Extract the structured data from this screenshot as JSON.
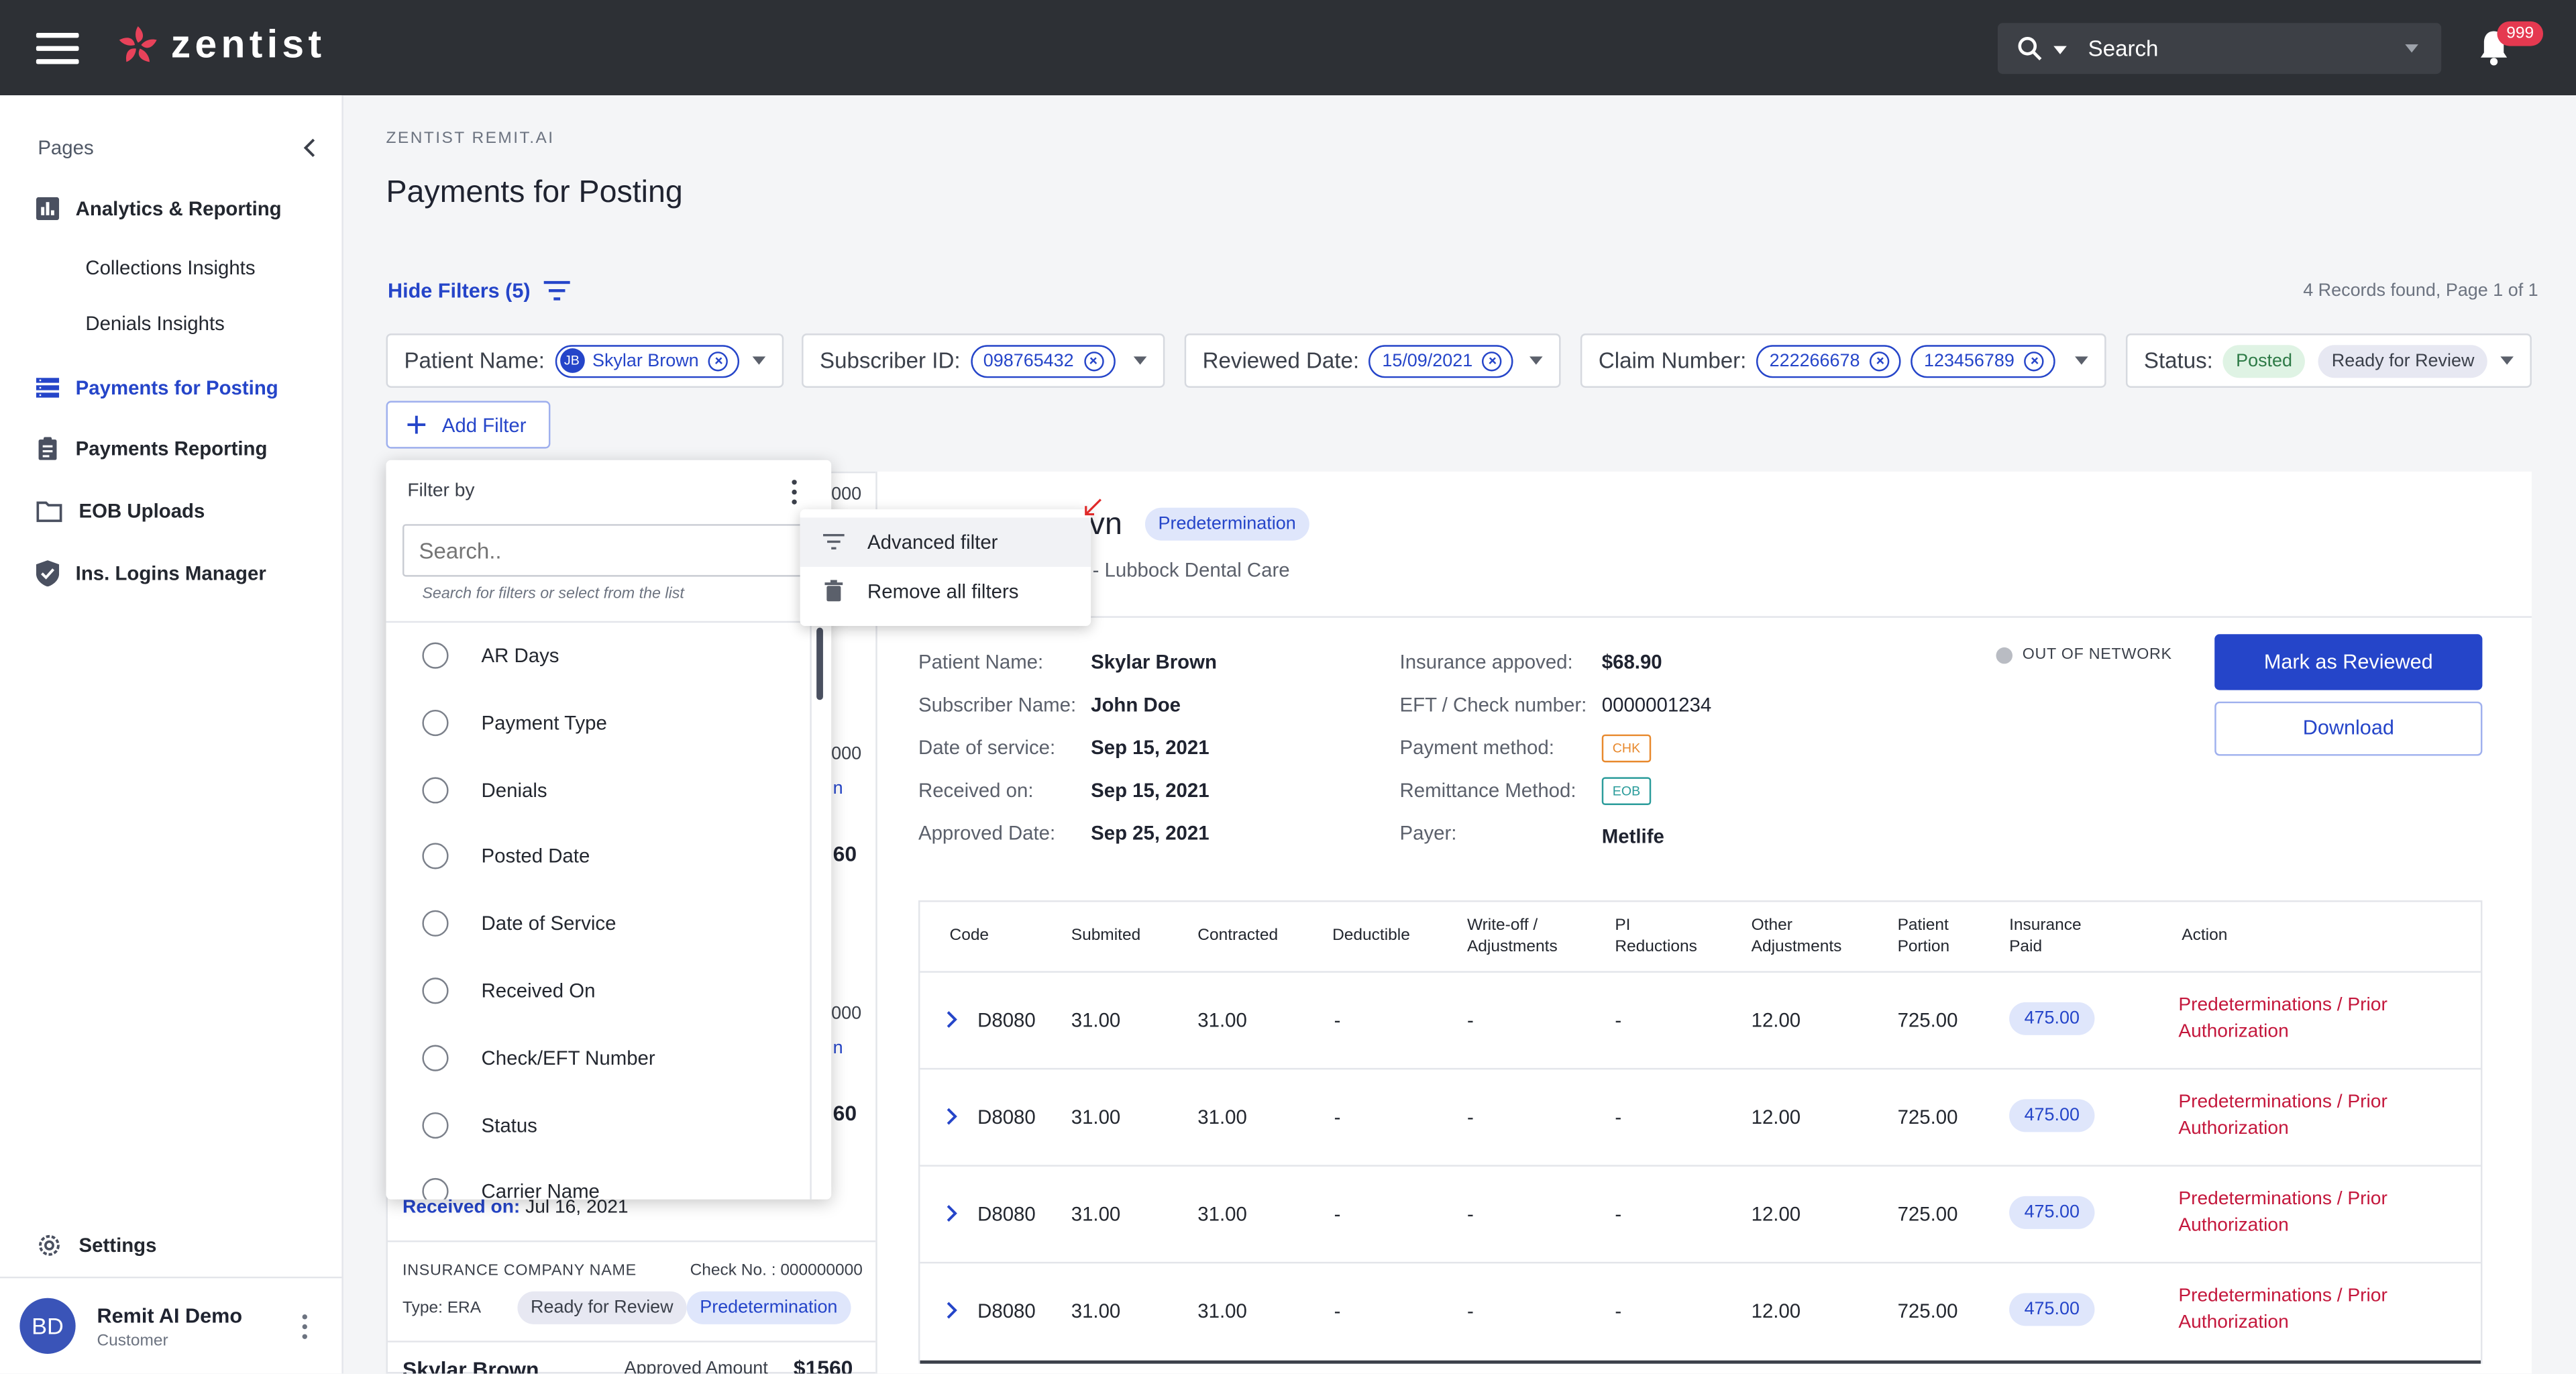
{
  "topbar": {
    "brand": "zentist",
    "search_placeholder": "Search",
    "notification_count": "999"
  },
  "sidebar": {
    "header": "Pages",
    "items": [
      {
        "label": "Analytics & Reporting",
        "icon": "bar-chart-icon"
      },
      {
        "label": "Collections Insights"
      },
      {
        "label": "Denials Insights"
      },
      {
        "label": "Payments for Posting",
        "icon": "list-icon",
        "active": true
      },
      {
        "label": "Payments Reporting",
        "icon": "clipboard-icon"
      },
      {
        "label": "EOB Uploads",
        "icon": "folder-icon"
      },
      {
        "label": "Ins. Logins Manager",
        "icon": "shield-icon"
      }
    ],
    "settings": "Settings",
    "user": {
      "initials": "BD",
      "name": "Remit AI Demo",
      "role": "Customer"
    }
  },
  "page": {
    "breadcrumb": "ZENTIST REMIT.AI",
    "title": "Payments for Posting",
    "hide_filters": "Hide Filters (5)",
    "records": "4 Records found, Page 1 of 1",
    "add_filter": "Add Filter"
  },
  "filters": {
    "patient": {
      "label": "Patient Name:",
      "chip_initials": "JB",
      "chip": "Skylar Brown"
    },
    "subscriber": {
      "label": "Subscriber ID:",
      "chip": "098765432"
    },
    "reviewed": {
      "label": "Reviewed Date:",
      "chip": "15/09/2021"
    },
    "claim": {
      "label": "Claim Number:",
      "chips": [
        "222266678",
        "123456789"
      ]
    },
    "status": {
      "label": "Status:",
      "pills": [
        "Posted",
        "Ready for Review"
      ]
    }
  },
  "dropdown": {
    "header": "Filter by",
    "search_placeholder": "Search..",
    "hint": "Search for filters or select from the list",
    "options": [
      "AR Days",
      "Payment Type",
      "Denials",
      "Posted Date",
      "Date of Service",
      "Received On",
      "Check/EFT Number",
      "Status",
      "Carrier Name"
    ],
    "menu": [
      "Advanced filter",
      "Remove all filters"
    ]
  },
  "list_cards": {
    "fragments": [
      "000",
      "000",
      "000",
      "60",
      "60",
      "n",
      "n"
    ],
    "received_label": "Received on:",
    "received_value": "Jul 16, 2021",
    "company": "INSURANCE COMPANY NAME",
    "check_no": "Check No. : 000000000",
    "type": "Type: ERA",
    "pills": [
      "Ready for Review",
      "Predetermination"
    ],
    "next_name": "Skylar Brown",
    "next_amount_label": "Approved Amount",
    "next_amount": "$1560"
  },
  "detail": {
    "name_suffix": "vn",
    "tag": "Predetermination",
    "practice": "- Lubbock Dental Care",
    "network": "OUT OF NETWORK",
    "mark_reviewed": "Mark as Reviewed",
    "download": "Download",
    "left": [
      {
        "label": "Patient Name:",
        "value": "Skylar Brown"
      },
      {
        "label": "Subscriber Name:",
        "value": "John Doe"
      },
      {
        "label": "Date of service:",
        "value": "Sep 15, 2021"
      },
      {
        "label": "Received on:",
        "value": "Sep 15, 2021"
      },
      {
        "label": "Approved Date:",
        "value": "Sep 25, 2021"
      }
    ],
    "right": [
      {
        "label": "Insurance appoved:",
        "value": "$68.90"
      },
      {
        "label": "EFT / Check number:",
        "value": "0000001234"
      },
      {
        "label": "Payment method:",
        "badge": "CHK"
      },
      {
        "label": "Remittance Method:",
        "badge": "EOB"
      },
      {
        "label": "Payer:",
        "value": "Metlife"
      }
    ]
  },
  "table": {
    "headers": [
      "Code",
      "Submited",
      "Contracted",
      "Deductible",
      "Write-off /\nAdjustments",
      "PI\nReductions",
      "Other\nAdjustments",
      "Patient\nPortion",
      "Insurance\nPaid",
      "Action"
    ],
    "rows": [
      {
        "code": "D8080",
        "submitted": "31.00",
        "contracted": "31.00",
        "deductible": "-",
        "writeoff": "-",
        "pi": "-",
        "other": "12.00",
        "patient": "725.00",
        "paid": "475.00",
        "action": "Predeterminations / Prior Authorization"
      },
      {
        "code": "D8080",
        "submitted": "31.00",
        "contracted": "31.00",
        "deductible": "-",
        "writeoff": "-",
        "pi": "-",
        "other": "12.00",
        "patient": "725.00",
        "paid": "475.00",
        "action": "Predeterminations / Prior Authorization"
      },
      {
        "code": "D8080",
        "submitted": "31.00",
        "contracted": "31.00",
        "deductible": "-",
        "writeoff": "-",
        "pi": "-",
        "other": "12.00",
        "patient": "725.00",
        "paid": "475.00",
        "action": "Predeterminations / Prior Authorization"
      },
      {
        "code": "D8080",
        "submitted": "31.00",
        "contracted": "31.00",
        "deductible": "-",
        "writeoff": "-",
        "pi": "-",
        "other": "12.00",
        "patient": "725.00",
        "paid": "475.00",
        "action": "Predeterminations / Prior Authorization"
      }
    ]
  }
}
